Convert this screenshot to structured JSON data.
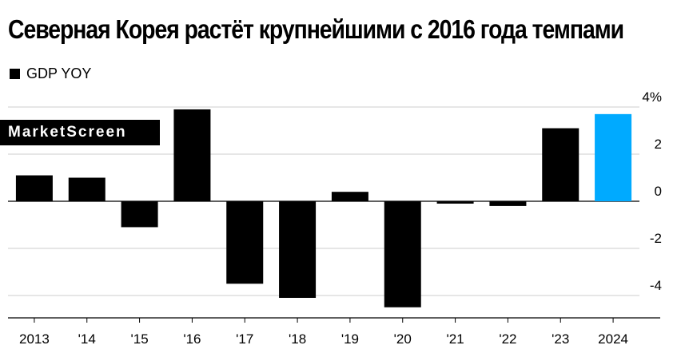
{
  "header": {
    "title": "Северная Корея растёт крупнейшими с 2016 года темпами"
  },
  "legend": {
    "label": "GDP YOY",
    "color": "#000000"
  },
  "watermark": {
    "text": "MarketScreen"
  },
  "colors": {
    "bar": "#000000",
    "highlight": "#00aaff",
    "grid": "#cccccc"
  },
  "chart_data": {
    "type": "bar",
    "title": "Северная Корея растёт крупнейшими с 2016 года темпами",
    "categories": [
      "2013",
      "'14",
      "'15",
      "'16",
      "'17",
      "'18",
      "'19",
      "'20",
      "'21",
      "'22",
      "'23",
      "2024"
    ],
    "series": [
      {
        "name": "GDP YOY",
        "values": [
          1.1,
          1.0,
          -1.1,
          3.9,
          -3.5,
          -4.1,
          0.4,
          -4.5,
          -0.1,
          -0.2,
          3.1,
          3.7
        ]
      }
    ],
    "highlight_index": 11,
    "yticks": [
      "4%",
      "2",
      "0",
      "-2",
      "-4"
    ],
    "ytick_values": [
      4,
      2,
      0,
      -2,
      -4
    ],
    "ylim": [
      -4.5,
      4.5
    ],
    "xlabel": "",
    "ylabel": "",
    "grid": true,
    "legend_position": "top-left"
  }
}
